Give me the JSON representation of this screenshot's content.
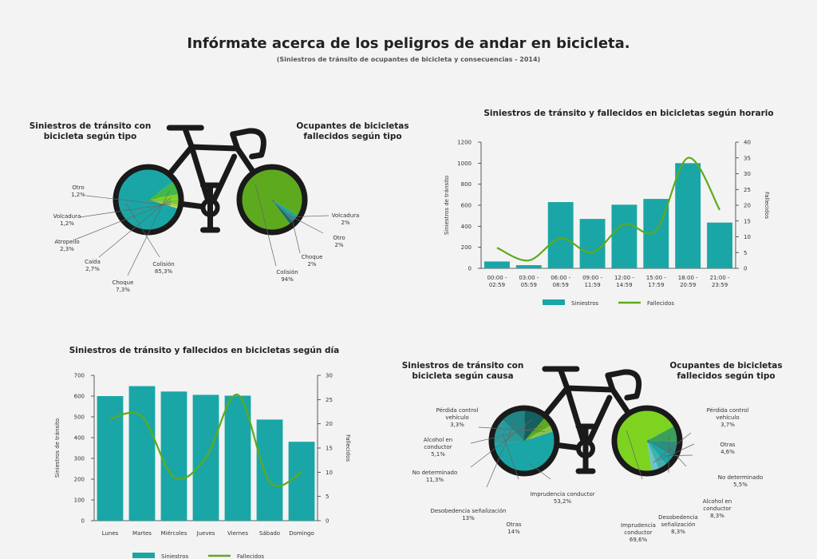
{
  "header": {
    "title": "Infórmate acerca de los peligros de andar en bicicleta.",
    "subtitle": "(Siniestros de tránsito de ocupantes de bicicleta y consecuencias - 2014)"
  },
  "colors": {
    "teal": "#1aa6a6",
    "green": "#5eaa1e",
    "lightgreen": "#7ed321",
    "darkteal": "#0d7a7a",
    "olive": "#3f8a2a",
    "line": "#5eaa1e",
    "frame": "#1a1a1a"
  },
  "bike1": {
    "left_title": [
      "Siniestros de tránsito con",
      "bicicleta según tipo"
    ],
    "right_title": [
      "Ocupantes de bicicletas",
      "fallecidos según tipo"
    ]
  },
  "bike2": {
    "left_title": [
      "Siniestros de tránsito con",
      "bicicleta según causa"
    ],
    "right_title": [
      "Ocupantes de bicicletas",
      "fallecidos según tipo"
    ]
  },
  "chart_data": [
    {
      "type": "pie",
      "title": "Siniestros de tránsito con bicicleta según tipo",
      "slices": [
        {
          "name": "Colisión",
          "label": "85,3%",
          "value": 85.3
        },
        {
          "name": "Choque",
          "label": "7,3%",
          "value": 7.3
        },
        {
          "name": "Caída",
          "label": "2,7%",
          "value": 2.7
        },
        {
          "name": "Atropello",
          "label": "2,3%",
          "value": 2.3
        },
        {
          "name": "Volcadura",
          "label": "1,2%",
          "value": 1.2
        },
        {
          "name": "Otro",
          "label": "1,2%",
          "value": 1.2
        }
      ]
    },
    {
      "type": "pie",
      "title": "Ocupantes de bicicletas fallecidos según tipo",
      "slices": [
        {
          "name": "Colisión",
          "label": "94%",
          "value": 94
        },
        {
          "name": "Choque",
          "label": "2%",
          "value": 2
        },
        {
          "name": "Otro",
          "label": "2%",
          "value": 2
        },
        {
          "name": "Volcadura",
          "label": "2%",
          "value": 2
        }
      ]
    },
    {
      "type": "bar",
      "title": "Siniestros de tránsito y fallecidos en bicicletas según horario",
      "categories": [
        "00:00 - 02:59",
        "03:00 - 05:59",
        "06:00 - 08:59",
        "09:00 - 11:59",
        "12:00 - 14:59",
        "15:00 - 17:59",
        "18:00 - 20:59",
        "21:00 - 23:59"
      ],
      "series": [
        {
          "name": "Siniestros",
          "type": "bar",
          "axis": "left",
          "values": [
            65,
            30,
            630,
            470,
            605,
            660,
            1000,
            435
          ]
        },
        {
          "name": "Fallecidos",
          "type": "line",
          "axis": "right",
          "values": [
            6.5,
            2.5,
            9.5,
            5,
            14,
            12,
            35,
            18.5
          ]
        }
      ],
      "ylabel": "Siniestros de tránsito",
      "ylim": [
        0,
        1200
      ],
      "yticks": [
        0,
        200,
        400,
        600,
        800,
        1000,
        1200
      ],
      "y2label": "Fallecidos",
      "y2lim": [
        0,
        40
      ],
      "y2ticks": [
        0,
        5,
        10,
        15,
        20,
        25,
        30,
        35,
        40
      ]
    },
    {
      "type": "bar",
      "title": "Siniestros de tránsito y fallecidos en bicicletas según día",
      "categories": [
        "Lunes",
        "Martes",
        "Miércoles",
        "Jueves",
        "Viernes",
        "Sábado",
        "Domingo"
      ],
      "series": [
        {
          "name": "Siniestros",
          "type": "bar",
          "axis": "left",
          "values": [
            600,
            648,
            622,
            606,
            602,
            487,
            380
          ]
        },
        {
          "name": "Fallecidos",
          "type": "line",
          "axis": "right",
          "values": [
            21,
            21.5,
            9,
            13,
            26,
            8,
            10
          ]
        }
      ],
      "ylabel": "Siniestros de tránsito",
      "ylim": [
        0,
        700
      ],
      "yticks": [
        0,
        100,
        200,
        300,
        400,
        500,
        600,
        700
      ],
      "y2label": "Fallecidos",
      "y2lim": [
        0,
        30
      ],
      "y2ticks": [
        0,
        5,
        10,
        15,
        20,
        25,
        30
      ]
    },
    {
      "type": "pie",
      "title": "Siniestros de tránsito con bicicleta según causa",
      "slices": [
        {
          "name": "Imprudencia conductor",
          "label": "53,2%",
          "value": 53.2
        },
        {
          "name": "Otras",
          "label": "14%",
          "value": 14
        },
        {
          "name": "Desobedencia señalización",
          "label": "13%",
          "value": 13
        },
        {
          "name": "No determinado",
          "label": "11,3%",
          "value": 11.3
        },
        {
          "name": "Alcohol en conductor",
          "label": "5,1%",
          "value": 5.1
        },
        {
          "name": "Pérdida control vehículo",
          "label": "3,3%",
          "value": 3.3
        }
      ]
    },
    {
      "type": "pie",
      "title": "Ocupantes de bicicletas fallecidos según tipo",
      "slices": [
        {
          "name": "Imprudencia conductor",
          "label": "69,6%",
          "value": 69.6
        },
        {
          "name": "Desobedencia señalización",
          "label": "8,3%",
          "value": 8.3
        },
        {
          "name": "Alcohol en conductor",
          "label": "8,3%",
          "value": 8.3
        },
        {
          "name": "No determinado",
          "label": "5,5%",
          "value": 5.5
        },
        {
          "name": "Otras",
          "label": "4,6%",
          "value": 4.6
        },
        {
          "name": "Pérdida control vehículo",
          "label": "3,7%",
          "value": 3.7
        }
      ]
    }
  ]
}
